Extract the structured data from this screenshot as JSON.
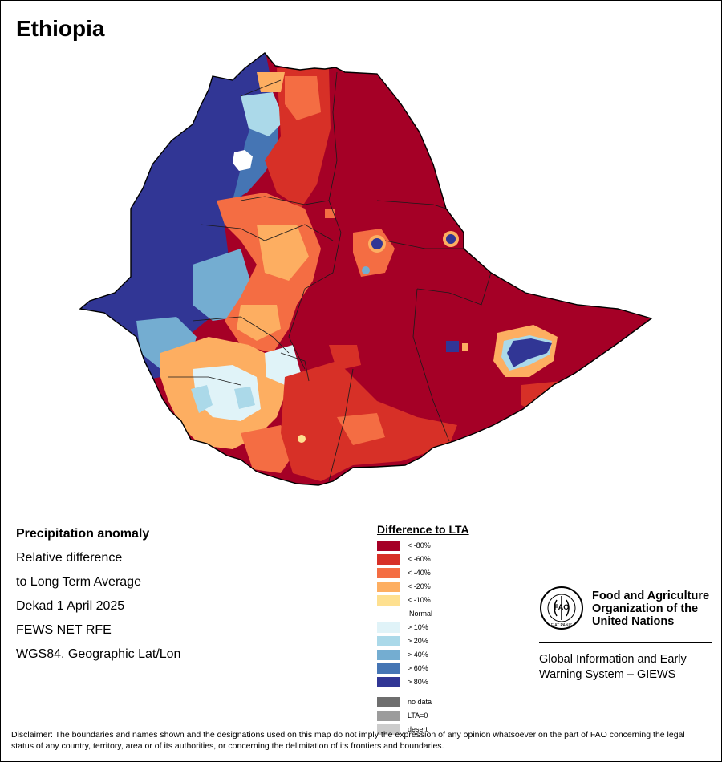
{
  "title": "Ethiopia",
  "info": {
    "lines": [
      "Precipitation anomaly",
      "Relative difference",
      "to Long Term Average",
      "Dekad 1 April 2025",
      "FEWS NET RFE",
      "WGS84, Geographic Lat/Lon"
    ]
  },
  "legend": {
    "title": "Difference to LTA",
    "items": [
      {
        "label": "< -80%",
        "color": "#a50026"
      },
      {
        "label": "< -60%",
        "color": "#d73027"
      },
      {
        "label": "< -40%",
        "color": "#f46d43"
      },
      {
        "label": "< -20%",
        "color": "#fdae61"
      },
      {
        "label": "< -10%",
        "color": "#fee090"
      },
      {
        "label": "Normal",
        "color": "#ffffff"
      },
      {
        "label": "> 10%",
        "color": "#e0f3f8"
      },
      {
        "label": "> 20%",
        "color": "#abd9e9"
      },
      {
        "label": "> 40%",
        "color": "#74add1"
      },
      {
        "label": "> 60%",
        "color": "#4575b4"
      },
      {
        "label": "> 80%",
        "color": "#313695"
      }
    ],
    "extra": [
      {
        "label": "no data",
        "color": "#6e6e6e"
      },
      {
        "label": "LTA=0",
        "color": "#9c9c9c"
      },
      {
        "label": "desert",
        "color": "#cccccc"
      }
    ]
  },
  "fao": {
    "name_lines": [
      "Food and Agriculture",
      "Organization of the",
      "United Nations"
    ],
    "logo_text": "FAO",
    "logo_motto": "FIAT PANIS",
    "giews_lines": [
      "Global Information and Early",
      "Warning System – GIEWS"
    ]
  },
  "disclaimer": "Disclaimer: The boundaries and names shown and the designations used on this map do not imply the expression of any opinion whatsoever on the part of FAO concerning the legal status of any country, territory, area or of its authorities, or concerning the delimitation of its frontiers and boundaries."
}
